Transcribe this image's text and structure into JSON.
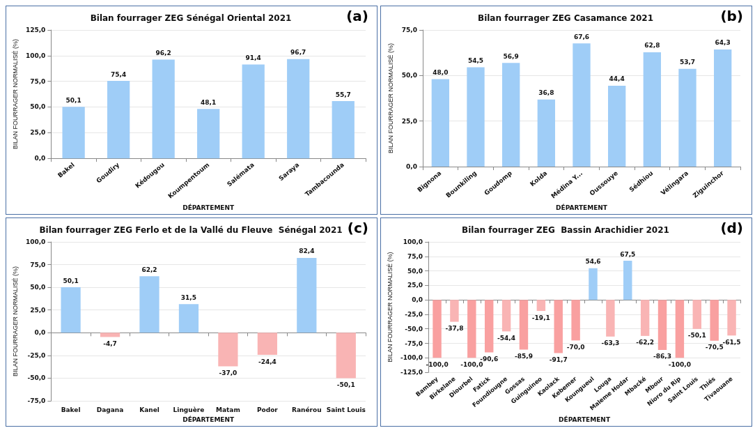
{
  "chart_data": [
    {
      "type": "bar",
      "title": "Bilan fourrager ZEG Sénégal Oriental 2021",
      "xlabel": "DÉPARTEMENT",
      "ylabel": "BILAN FOURRAGER NORMALISÉ (%)",
      "annotations": [
        "(a)"
      ],
      "grid": "y",
      "categories": [
        "Bakel",
        "Goudiry",
        "Kédougou",
        "Koumpentoum",
        "Salémata",
        "Saraya",
        "Tambacounda"
      ],
      "values": [
        50.1,
        75.4,
        96.2,
        48.1,
        91.4,
        96.7,
        55.7
      ],
      "value_labels": [
        "50,1",
        "75,4",
        "96,2",
        "48,1",
        "91,4",
        "96,7",
        "55,7"
      ],
      "colors": [
        "#9fcdf7",
        "#9fcdf7",
        "#9fcdf7",
        "#9fcdf7",
        "#9fcdf7",
        "#9fcdf7",
        "#9fcdf7"
      ],
      "ylim": [
        0,
        125
      ],
      "yticks": [
        {
          "value": 0,
          "label": "0,0"
        },
        {
          "value": 25,
          "label": "25,0"
        },
        {
          "value": 50,
          "label": "50,0"
        },
        {
          "value": 75,
          "label": "75,0"
        },
        {
          "value": 100,
          "label": "100,0"
        },
        {
          "value": 125,
          "label": "125,0"
        }
      ]
    },
    {
      "type": "bar",
      "title": "Bilan fourrager ZEG Casamance 2021",
      "xlabel": "DÉPARTEMENT",
      "ylabel": "BILAN FOURRAGER NORMALISÉ (%)",
      "annotations": [
        "(b)"
      ],
      "grid": "y",
      "categories": [
        "Bignona",
        "Bounkiling",
        "Goudomp",
        "Kolda",
        "Médina Y...",
        "Oussouye",
        "Sédhiou",
        "Vélingara",
        "Ziguinchor"
      ],
      "values": [
        48.0,
        54.5,
        56.9,
        36.8,
        67.6,
        44.4,
        62.8,
        53.7,
        64.3
      ],
      "value_labels": [
        "48,0",
        "54,5",
        "56,9",
        "36,8",
        "67,6",
        "44,4",
        "62,8",
        "53,7",
        "64,3"
      ],
      "colors": [
        "#9fcdf7",
        "#9fcdf7",
        "#9fcdf7",
        "#9fcdf7",
        "#9fcdf7",
        "#9fcdf7",
        "#9fcdf7",
        "#9fcdf7",
        "#9fcdf7"
      ],
      "ylim": [
        0,
        75
      ],
      "yticks": [
        {
          "value": 0,
          "label": "0,0"
        },
        {
          "value": 25,
          "label": "25,0"
        },
        {
          "value": 50,
          "label": "50,0"
        },
        {
          "value": 75,
          "label": "75,0"
        }
      ]
    },
    {
      "type": "bar",
      "title": "Bilan fourrager ZEG Ferlo et de la Vallé du Fleuve  Sénégal 2021",
      "xlabel": "DÉPARTEMENT",
      "ylabel": "BILAN FOURRAGER NORMALISÉ (%)",
      "annotations": [
        "(c)"
      ],
      "grid": "y",
      "categories": [
        "Bakel",
        "Dagana",
        "Kanel",
        "Linguère",
        "Matam",
        "Podor",
        "Ranérou",
        "Saint Louis"
      ],
      "values": [
        50.1,
        -4.7,
        62.2,
        31.5,
        -37.0,
        -24.4,
        82.4,
        -50.1
      ],
      "value_labels": [
        "50,1",
        "-4,7",
        "62,2",
        "31,5",
        "-37,0",
        "-24,4",
        "82,4",
        "-50,1"
      ],
      "colors": [
        "#9fcdf7",
        "#f9b4b4",
        "#9fcdf7",
        "#9fcdf7",
        "#f9b4b4",
        "#f9b4b4",
        "#9fcdf7",
        "#f9b4b4"
      ],
      "ylim": [
        -75,
        100
      ],
      "yticks": [
        {
          "value": -75,
          "label": "-75,0"
        },
        {
          "value": -50,
          "label": "-50,0"
        },
        {
          "value": -25,
          "label": "-25,0"
        },
        {
          "value": 0,
          "label": "0,0"
        },
        {
          "value": 25,
          "label": "25,0"
        },
        {
          "value": 50,
          "label": "50,0"
        },
        {
          "value": 75,
          "label": "75,0"
        },
        {
          "value": 100,
          "label": "100,0"
        }
      ]
    },
    {
      "type": "bar",
      "title": "Bilan fourrager ZEG  Bassin Arachidier 2021",
      "xlabel": "DÉPARTEMENT",
      "ylabel": "BILAN FOURRAGER NORMALISÉ (%)",
      "annotations": [
        "(d)"
      ],
      "grid": "y",
      "categories": [
        "Bambey",
        "Birkelane",
        "Diourbel",
        "Fatick",
        "Foundiougne",
        "Gossas",
        "Guinguineo",
        "Kaolack",
        "Kebemer",
        "Koungueul",
        "Louga",
        "Maleme Hodar",
        "Mbacké",
        "Mbour",
        "Nioro du Rip",
        "Saint Louis",
        "Thiés",
        "Tivaouane"
      ],
      "values": [
        -100.0,
        -37.8,
        -100.0,
        -90.6,
        -54.4,
        -85.9,
        -19.1,
        -91.7,
        -70.0,
        54.6,
        -63.3,
        67.5,
        -62.2,
        -86.3,
        -100.0,
        -50.1,
        -70.5,
        -61.5
      ],
      "value_labels": [
        "-100,0",
        "-37,8",
        "-100,0",
        "-90,6",
        "-54,4",
        "-85,9",
        "-19,1",
        "-91,7",
        "-70,0",
        "54,6",
        "-63,3",
        "67,5",
        "-62,2",
        "-86,3",
        "-100,0",
        "-50,1",
        "-70,5",
        "-61,5"
      ],
      "colors": [
        "#f9a0a0",
        "#f9b4b4",
        "#f9a0a0",
        "#f9a0a0",
        "#f9b4b4",
        "#f9a0a0",
        "#f9b4b4",
        "#f9a0a0",
        "#f9a0a0",
        "#9fcdf7",
        "#f9b4b4",
        "#9fcdf7",
        "#f9b4b4",
        "#f9a0a0",
        "#f9a0a0",
        "#f9b4b4",
        "#f9a0a0",
        "#f9b4b4"
      ],
      "ylim": [
        -125,
        100
      ],
      "yticks": [
        {
          "value": -125,
          "label": "-125,0"
        },
        {
          "value": -100,
          "label": "-100,0"
        },
        {
          "value": -75,
          "label": "-75,0"
        },
        {
          "value": -50,
          "label": "-50,0"
        },
        {
          "value": -25,
          "label": "-25,0"
        },
        {
          "value": 0,
          "label": "0,0"
        },
        {
          "value": 25,
          "label": "25,0"
        },
        {
          "value": 50,
          "label": "50,0"
        },
        {
          "value": 75,
          "label": "75,0"
        },
        {
          "value": 100,
          "label": "100,0"
        }
      ]
    }
  ]
}
